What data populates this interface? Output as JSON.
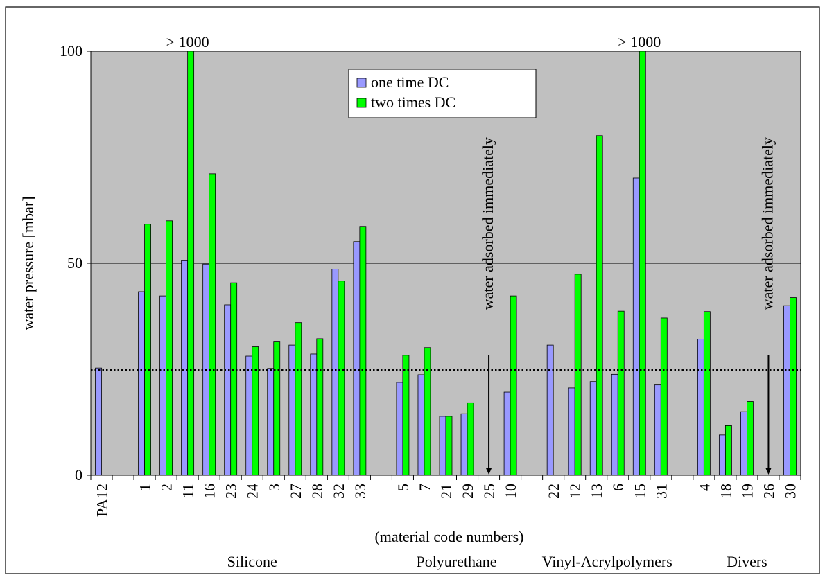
{
  "chart_data": {
    "type": "bar",
    "title": "",
    "xlabel": "(material code numbers)",
    "ylabel": "water pressure [mbar]",
    "ylim": [
      0,
      100
    ],
    "yticks": [
      0,
      50,
      100
    ],
    "plot_background": "#c0c0c0",
    "grid": "horizontal at 50",
    "legend_position": "top-center",
    "categories": [
      "PA12",
      "",
      "1",
      "2",
      "11",
      "16",
      "23",
      "24",
      "3",
      "27",
      "28",
      "32",
      "33",
      "",
      "5",
      "7",
      "21",
      "29",
      "25",
      "10",
      "",
      "22",
      "12",
      "13",
      "6",
      "15",
      "31",
      "",
      "4",
      "18",
      "19",
      "26",
      "30"
    ],
    "series": [
      {
        "name": "one time DC",
        "color": "#9999ff",
        "values": [
          25.3,
          null,
          43.3,
          42.3,
          50.6,
          49.8,
          40.2,
          28.1,
          25.2,
          30.7,
          28.6,
          48.6,
          55.1,
          null,
          21.9,
          23.7,
          13.9,
          14.5,
          null,
          19.6,
          null,
          30.7,
          20.6,
          22.1,
          23.8,
          70.1,
          21.3,
          null,
          32.1,
          9.5,
          15.0,
          null,
          40.0
        ]
      },
      {
        "name": "two times DC",
        "color": "#00ff00",
        "values": [
          null,
          null,
          59.2,
          60.0,
          100,
          71.1,
          45.4,
          30.3,
          31.6,
          36.0,
          32.2,
          45.8,
          58.7,
          null,
          28.3,
          30.1,
          13.9,
          17.1,
          null,
          42.3,
          null,
          null,
          47.4,
          80.1,
          38.7,
          100,
          37.1,
          null,
          38.6,
          11.7,
          17.4,
          null,
          41.9
        ]
      }
    ],
    "reference_line": {
      "value": 24.8,
      "style": "dotted"
    },
    "annotations": [
      {
        "text": "> 1000",
        "category": "11"
      },
      {
        "text": "> 1000",
        "category": "15"
      },
      {
        "text": "water adsorbed immediately",
        "category": "25",
        "arrow": true
      },
      {
        "text": "water adsorbed immediately",
        "category": "26",
        "arrow": true
      }
    ],
    "groups": [
      {
        "label": "Silicone",
        "from": "1",
        "to": "33"
      },
      {
        "label": "Polyurethane",
        "from": "5",
        "to": "10"
      },
      {
        "label": "Vinyl-Acrylpolymers",
        "from": "22",
        "to": "31"
      },
      {
        "label": "Divers",
        "from": "4",
        "to": "30"
      }
    ]
  }
}
